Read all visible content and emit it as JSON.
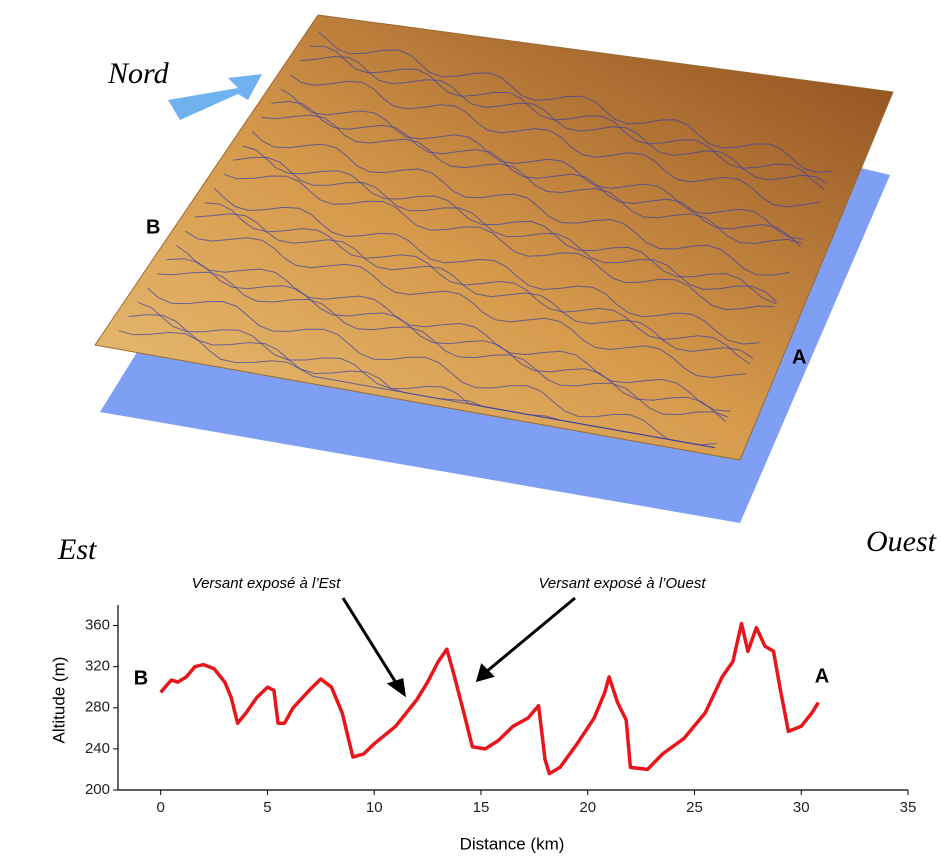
{
  "figure": {
    "north_label": "Nord",
    "point_b": "B",
    "point_a": "A"
  },
  "chart_data": {
    "type": "line",
    "x_label": "Distance (km)",
    "y_label": "Altitude (m)",
    "left_label": "Est",
    "right_label": "Ouest",
    "start_label": "B",
    "end_label": "A",
    "annotations": [
      "Versant exposé à l’Est",
      "Versant exposé à l’Ouest"
    ],
    "xlim": [
      -2,
      35
    ],
    "xticks": [
      0,
      5,
      10,
      15,
      20,
      25,
      30,
      35
    ],
    "ylim": [
      200,
      380
    ],
    "yticks": [
      200,
      240,
      280,
      320,
      360
    ],
    "series": [
      {
        "color": "#e8161b",
        "x": [
          0,
          0.2,
          0.5,
          0.8,
          1.2,
          1.6,
          2.0,
          2.5,
          3.0,
          3.3,
          3.6,
          4.0,
          4.5,
          5.0,
          5.3,
          5.5,
          5.8,
          6.2,
          7.0,
          7.5,
          8.0,
          8.5,
          9.0,
          9.5,
          10.0,
          11.0,
          12.0,
          12.5,
          13.0,
          13.4,
          13.7,
          14.2,
          14.6,
          15.2,
          15.8,
          16.5,
          17.2,
          17.7,
          18.0,
          18.2,
          18.7,
          19.5,
          20.3,
          20.8,
          21.0,
          21.4,
          21.8,
          22.0,
          22.8,
          23.5,
          24.5,
          25.5,
          26.3,
          26.8,
          27.2,
          27.5,
          27.9,
          28.3,
          28.7,
          29.0,
          29.4,
          30.0,
          30.5,
          30.8
        ],
        "values": [
          295,
          300,
          307,
          305,
          310,
          320,
          322,
          318,
          305,
          290,
          265,
          275,
          290,
          300,
          297,
          265,
          265,
          280,
          298,
          308,
          300,
          275,
          232,
          235,
          245,
          262,
          288,
          305,
          325,
          337,
          315,
          275,
          242,
          240,
          248,
          262,
          270,
          282,
          230,
          216,
          222,
          245,
          270,
          295,
          310,
          285,
          268,
          222,
          220,
          235,
          250,
          275,
          310,
          325,
          362,
          335,
          358,
          340,
          335,
          300,
          257,
          262,
          275,
          285
        ]
      }
    ]
  }
}
